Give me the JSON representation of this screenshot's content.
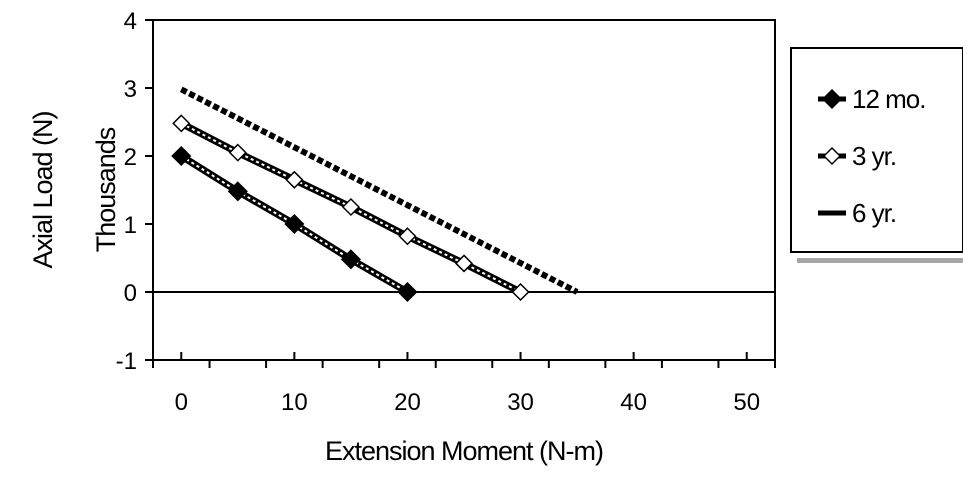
{
  "chart_data": {
    "type": "scatter",
    "title": "",
    "xlabel": "Extension Moment (N-m)",
    "ylabel": "Axial Load (N)",
    "ylabel_secondary": "Thousands",
    "xlim": [
      -2.5,
      52.5
    ],
    "ylim": [
      -1,
      4
    ],
    "x_ticks": [
      0,
      10,
      20,
      30,
      40,
      50
    ],
    "y_ticks": [
      -1,
      0,
      1,
      2,
      3,
      4
    ],
    "grid": false,
    "legend_position": "right",
    "series": [
      {
        "name": "12 mo.",
        "marker": "filled-diamond",
        "color": "#000000",
        "points": [
          [
            0,
            2.0
          ],
          [
            5,
            1.48
          ],
          [
            10,
            1.0
          ],
          [
            15,
            0.48
          ],
          [
            20,
            0.0
          ]
        ]
      },
      {
        "name": "3 yr.",
        "marker": "open-diamond",
        "color": "#000000",
        "points": [
          [
            0,
            2.48
          ],
          [
            5,
            2.05
          ],
          [
            10,
            1.65
          ],
          [
            15,
            1.25
          ],
          [
            20,
            0.82
          ],
          [
            25,
            0.42
          ],
          [
            30,
            0.0
          ]
        ]
      },
      {
        "name": "6 yr.",
        "marker": "dash",
        "color": "#000000",
        "points": [
          [
            0,
            2.98
          ],
          [
            35,
            0.0
          ]
        ]
      }
    ]
  }
}
